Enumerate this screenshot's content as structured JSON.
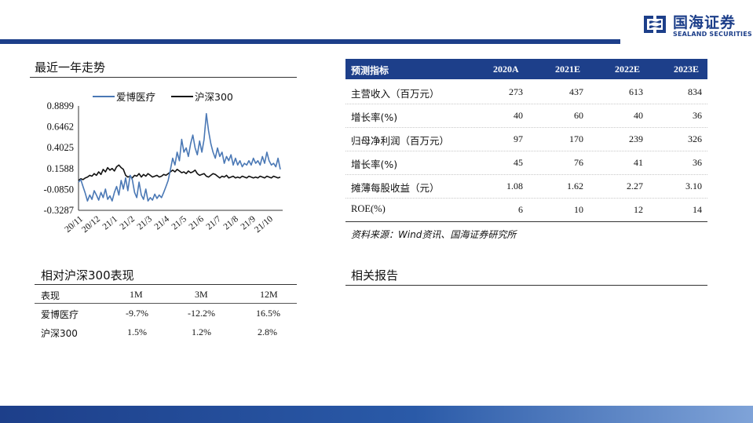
{
  "brand": {
    "name_cn": "国海证券",
    "name_en": "SEALAND SECURITIES",
    "color": "#1d3f8a"
  },
  "trend": {
    "title": "最近一年走势",
    "chart_data": {
      "type": "line",
      "legend": [
        "爱博医疗",
        "沪深300"
      ],
      "yticks": [
        "0.8899",
        "0.6462",
        "0.4025",
        "0.1588",
        "-0.0850",
        "-0.3287"
      ],
      "ylim": [
        -0.3287,
        0.8899
      ],
      "xticks": [
        "20/11",
        "20/12",
        "21/1",
        "21/2",
        "21/3",
        "21/4",
        "21/5",
        "21/6",
        "21/7",
        "21/8",
        "21/9",
        "21/10"
      ],
      "series": [
        {
          "name": "爱博医疗",
          "color": "#4a78b5",
          "values": [
            0.0,
            0.03,
            -0.05,
            -0.13,
            -0.22,
            -0.15,
            -0.2,
            -0.1,
            -0.15,
            -0.21,
            -0.12,
            -0.18,
            -0.08,
            -0.2,
            -0.16,
            -0.22,
            -0.12,
            -0.05,
            -0.15,
            0.02,
            -0.08,
            0.05,
            -0.1,
            0.08,
            0.03,
            -0.12,
            -0.18,
            0.0,
            -0.15,
            -0.2,
            -0.08,
            -0.22,
            -0.18,
            -0.21,
            -0.14,
            -0.19,
            -0.15,
            -0.18,
            -0.12,
            -0.05,
            0.02,
            0.15,
            0.28,
            0.2,
            0.35,
            0.25,
            0.5,
            0.35,
            0.4,
            0.3,
            0.45,
            0.55,
            0.4,
            0.32,
            0.48,
            0.35,
            0.5,
            0.8,
            0.6,
            0.45,
            0.35,
            0.28,
            0.4,
            0.3,
            0.35,
            0.22,
            0.3,
            0.25,
            0.32,
            0.2,
            0.28,
            0.2,
            0.25,
            0.18,
            0.22,
            0.2,
            0.25,
            0.2,
            0.28,
            0.22,
            0.25,
            0.2,
            0.3,
            0.22,
            0.35,
            0.25,
            0.2,
            0.22,
            0.18,
            0.28,
            0.15
          ]
        },
        {
          "name": "沪深300",
          "color": "#111111",
          "values": [
            0.02,
            0.04,
            0.03,
            0.05,
            0.06,
            0.08,
            0.07,
            0.1,
            0.08,
            0.12,
            0.09,
            0.15,
            0.12,
            0.17,
            0.14,
            0.16,
            0.13,
            0.18,
            0.2,
            0.17,
            0.15,
            0.08,
            0.06,
            0.07,
            0.05,
            0.08,
            0.07,
            0.1,
            0.06,
            0.09,
            0.07,
            0.1,
            0.08,
            0.06,
            0.07,
            0.08,
            0.06,
            0.07,
            0.09,
            0.08,
            0.1,
            0.12,
            0.14,
            0.12,
            0.15,
            0.13,
            0.11,
            0.12,
            0.1,
            0.13,
            0.11,
            0.12,
            0.14,
            0.1,
            0.08,
            0.09,
            0.1,
            0.07,
            0.06,
            0.08,
            0.1,
            0.09,
            0.07,
            0.05,
            0.07,
            0.06,
            0.08,
            0.05,
            0.06,
            0.07,
            0.05,
            0.06,
            0.05,
            0.07,
            0.06,
            0.05,
            0.07,
            0.06,
            0.05,
            0.06,
            0.05,
            0.07,
            0.06,
            0.05,
            0.07,
            0.06,
            0.05,
            0.07,
            0.06,
            0.05,
            0.06
          ]
        }
      ]
    }
  },
  "relative": {
    "title": "相对沪深300表现",
    "headers": [
      "表现",
      "1M",
      "3M",
      "12M"
    ],
    "rows": [
      [
        "爱博医疗",
        "-9.7%",
        "-12.2%",
        "16.5%"
      ],
      [
        "沪深300",
        "1.5%",
        "1.2%",
        "2.8%"
      ]
    ]
  },
  "forecast": {
    "headers": [
      "预测指标",
      "2020A",
      "2021E",
      "2022E",
      "2023E"
    ],
    "rows": [
      [
        "主营收入（百万元）",
        "273",
        "437",
        "613",
        "834"
      ],
      [
        "增长率(%)",
        "40",
        "60",
        "40",
        "36"
      ],
      [
        "归母净利润（百万元）",
        "97",
        "170",
        "239",
        "326"
      ],
      [
        "增长率(%)",
        "45",
        "76",
        "41",
        "36"
      ],
      [
        "摊薄每股收益（元）",
        "1.08",
        "1.62",
        "2.27",
        "3.10"
      ],
      [
        "ROE(%)",
        "6",
        "10",
        "12",
        "14"
      ]
    ],
    "source": "资料来源：Wind资讯、国海证券研究所"
  },
  "related": {
    "title": "相关报告"
  }
}
